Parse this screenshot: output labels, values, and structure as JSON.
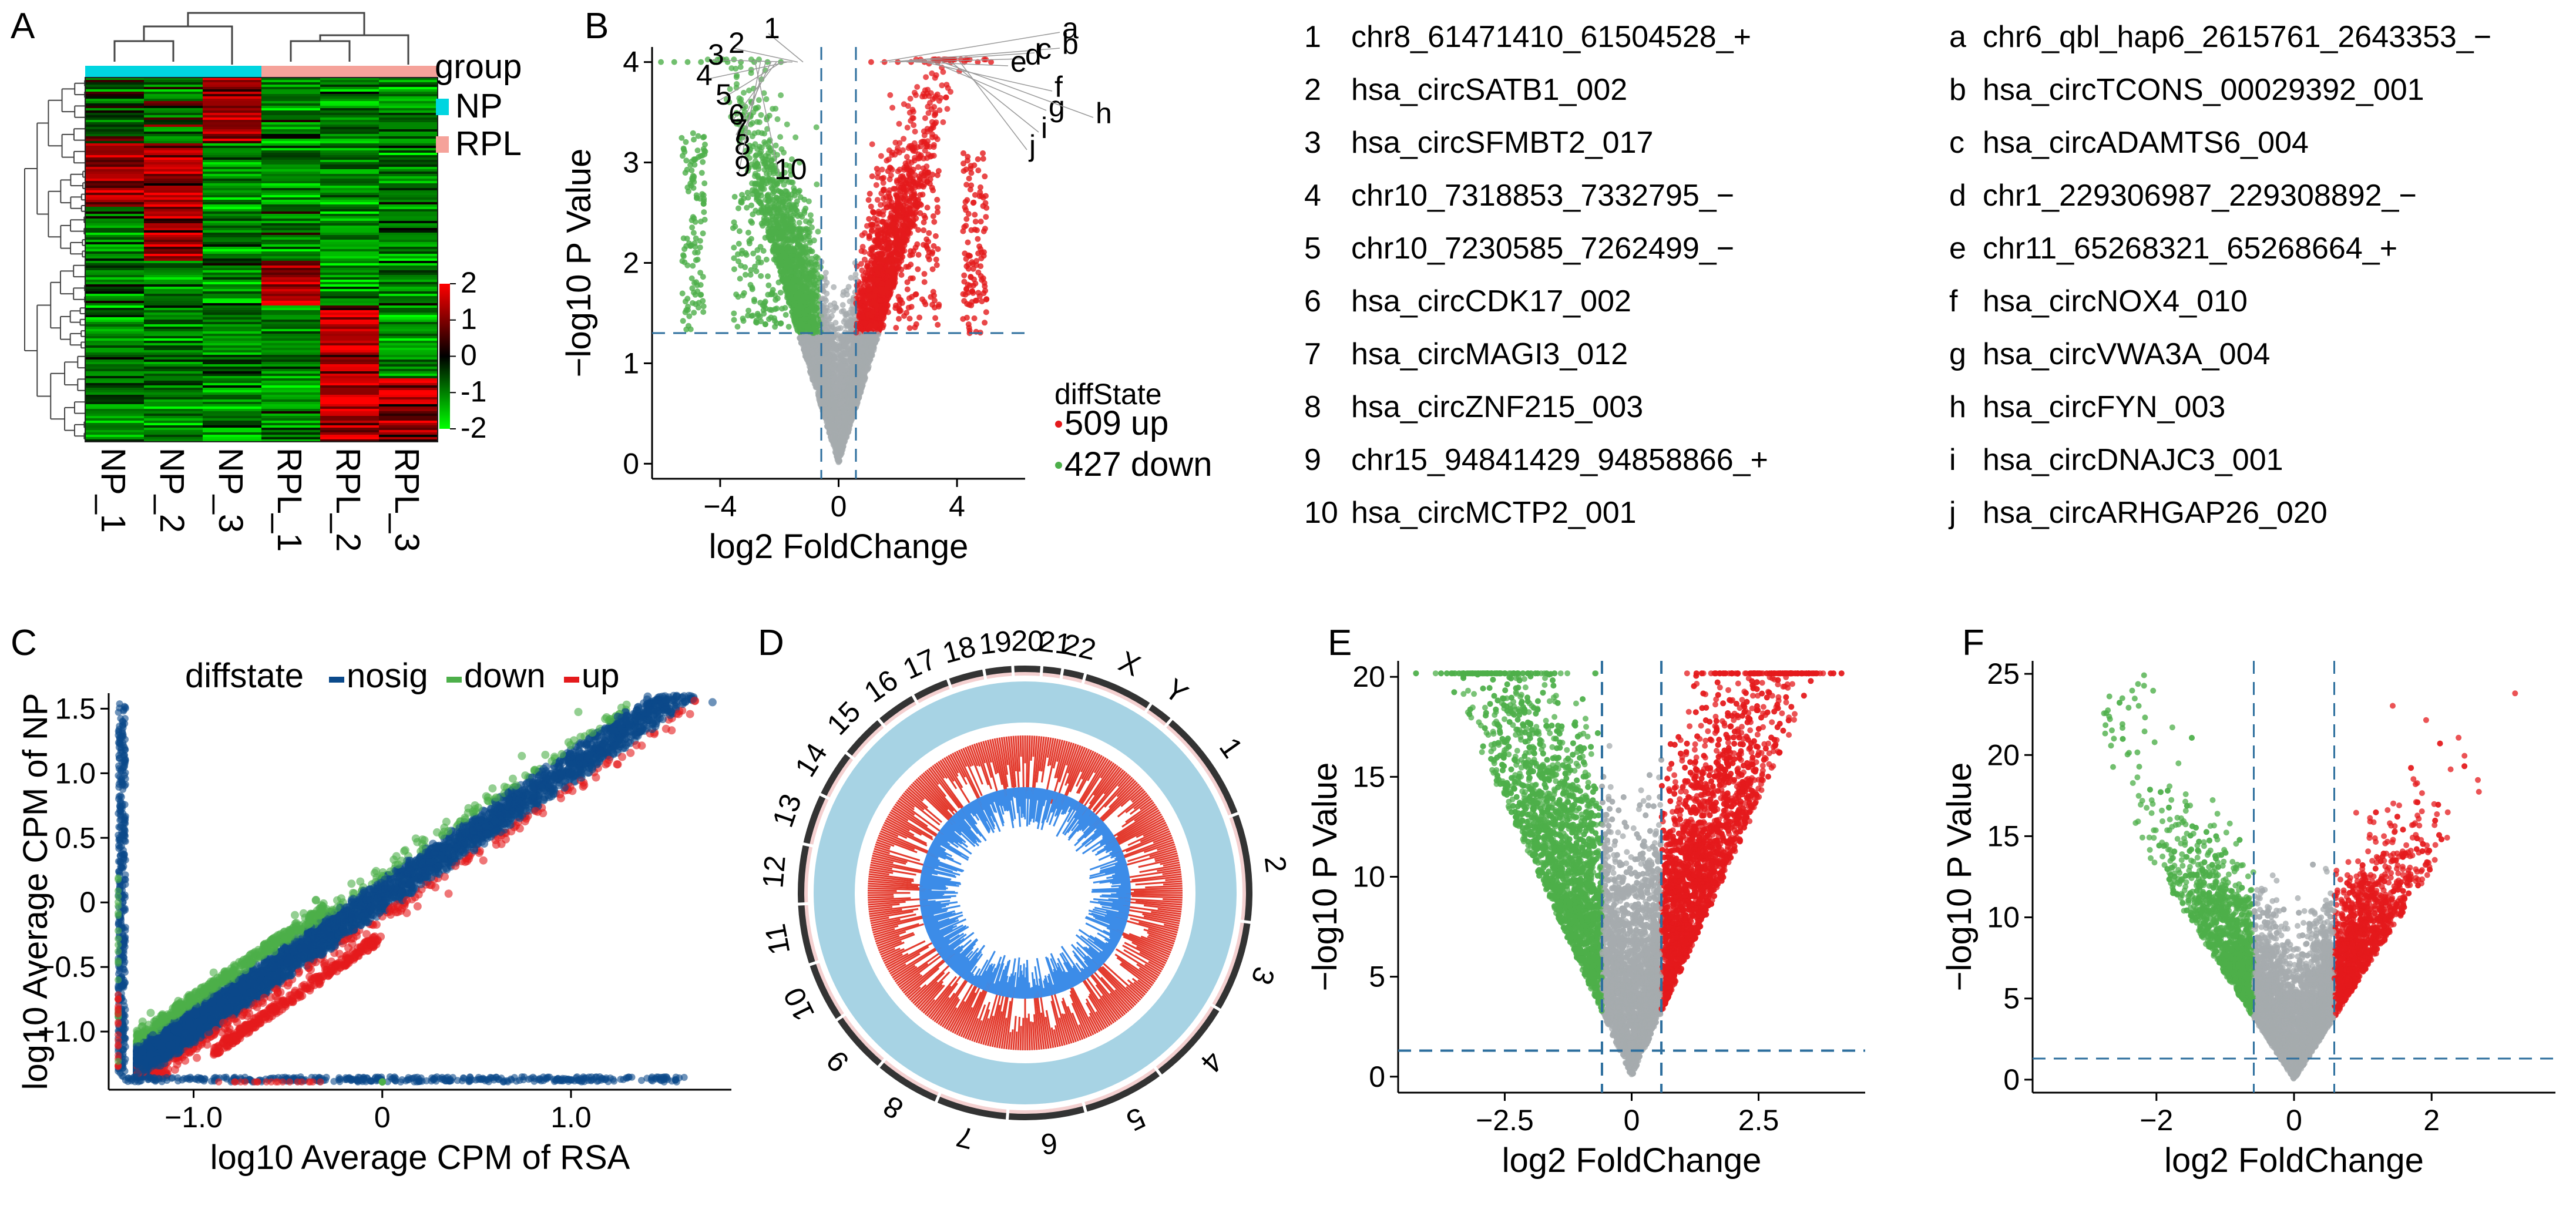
{
  "figure": {
    "panel_letters": [
      "A",
      "B",
      "C",
      "D",
      "E",
      "F"
    ]
  },
  "colors": {
    "up": "#e41a1c",
    "down": "#4daf4a",
    "nosig": "#a6abad",
    "nosig_c": "#0b4a8b",
    "np": "#00d5e0",
    "rpl": "#f5a29a",
    "circos_ring": "#a7d3e4",
    "circos_in": "#3c8ce8",
    "circos_out": "#e33b2e"
  },
  "chart_data": [
    {
      "id": "A",
      "type": "heatmap",
      "title": "",
      "columns": [
        "NP_1",
        "NP_2",
        "NP_3",
        "RPL_1",
        "RPL_2",
        "RPL_3"
      ],
      "legend_title": "group",
      "groups": [
        "NP",
        "RPL"
      ],
      "colorbar": {
        "ticks": [
          "2",
          "1",
          "0",
          "-1",
          "-2"
        ],
        "range": [
          -2,
          2
        ]
      }
    },
    {
      "id": "B",
      "type": "scatter",
      "title": "",
      "xlabel": "log2 FoldChange",
      "ylabel": "−log10 P Value",
      "xlim": [
        -6.3,
        6.3
      ],
      "ylim": [
        -0.15,
        4.15
      ],
      "xticks": [
        -4,
        0,
        4
      ],
      "xtick_labels": [
        "−4",
        "0",
        "4"
      ],
      "yticks": [
        0,
        1,
        2,
        3,
        4
      ],
      "ytick_labels": [
        "0",
        "1",
        "2",
        "3",
        "4"
      ],
      "vlines": [
        -0.585,
        0.585
      ],
      "hline": 1.301,
      "legend_title": "diffState",
      "legend": [
        {
          "name": "up",
          "label": "509 up"
        },
        {
          "name": "down",
          "label": "427 down"
        }
      ],
      "counts": {
        "up": 509,
        "down": 427
      },
      "annot_num": [
        "1",
        "2",
        "3",
        "4",
        "5",
        "6",
        "7",
        "8",
        "9",
        "10"
      ],
      "annot_let": [
        "a",
        "b",
        "c",
        "d",
        "e",
        "f",
        "g",
        "h",
        "i",
        "j"
      ]
    },
    {
      "id": "C",
      "type": "scatter",
      "title": "",
      "xlabel": "log10 Average CPM of RSA",
      "ylabel": "log10 Average CPM of NP",
      "xlim": [
        -1.45,
        1.85
      ],
      "ylim": [
        -1.45,
        1.62
      ],
      "xticks": [
        -1,
        0,
        1
      ],
      "xtick_labels": [
        "−1.0",
        "0",
        "1.0"
      ],
      "yticks": [
        -1,
        -0.5,
        0,
        0.5,
        1,
        1.5
      ],
      "ytick_labels": [
        "−1.0",
        "−0.5",
        "0",
        "0.5",
        "1.0",
        "1.5"
      ],
      "legend_title": "diffstate",
      "legend": [
        "nosig",
        "down",
        "up"
      ]
    },
    {
      "id": "D",
      "type": "circos",
      "title": "",
      "chromosomes": [
        "1",
        "2",
        "3",
        "4",
        "5",
        "6",
        "7",
        "8",
        "9",
        "10",
        "11",
        "12",
        "13",
        "14",
        "15",
        "16",
        "17",
        "18",
        "19",
        "20",
        "21",
        "22",
        "X",
        "Y"
      ]
    },
    {
      "id": "E",
      "type": "scatter",
      "title": "",
      "xlabel": "log2 FoldChange",
      "ylabel": "−log10 P Value",
      "xlim": [
        -4.6,
        4.6
      ],
      "ylim": [
        -0.8,
        20.8
      ],
      "xticks": [
        -2.5,
        0,
        2.5
      ],
      "xtick_labels": [
        "−2.5",
        "0",
        "2.5"
      ],
      "yticks": [
        0,
        5,
        10,
        15,
        20
      ],
      "ytick_labels": [
        "0",
        "5",
        "10",
        "15",
        "20"
      ],
      "vlines": [
        -0.585,
        0.585
      ],
      "hline": 1.301
    },
    {
      "id": "F",
      "type": "scatter",
      "title": "",
      "xlabel": "log2 FoldChange",
      "ylabel": "−log10 P Value",
      "xlim": [
        -3.8,
        3.8
      ],
      "ylim": [
        -0.8,
        25.8
      ],
      "xticks": [
        -2,
        0,
        2
      ],
      "xtick_labels": [
        "−2",
        "0",
        "2"
      ],
      "yticks": [
        0,
        5,
        10,
        15,
        20,
        25
      ],
      "ytick_labels": [
        "0",
        "5",
        "10",
        "15",
        "20",
        "25"
      ],
      "vlines": [
        -0.585,
        0.585
      ],
      "hline": 1.301
    }
  ],
  "circ_list_numbered": [
    {
      "key": "1",
      "name": "chr8_61471410_61504528_+"
    },
    {
      "key": "2",
      "name": "hsa_circSATB1_002"
    },
    {
      "key": "3",
      "name": "hsa_circSFMBT2_017"
    },
    {
      "key": "4",
      "name": "chr10_7318853_7332795_−"
    },
    {
      "key": "5",
      "name": "chr10_7230585_7262499_−"
    },
    {
      "key": "6",
      "name": "hsa_circCDK17_002"
    },
    {
      "key": "7",
      "name": "hsa_circMAGI3_012"
    },
    {
      "key": "8",
      "name": "hsa_circZNF215_003"
    },
    {
      "key": "9",
      "name": "chr15_94841429_94858866_+"
    },
    {
      "key": "10",
      "name": "hsa_circMCTP2_001"
    }
  ],
  "circ_list_lettered": [
    {
      "key": "a",
      "name": "chr6_qbl_hap6_2615761_2643353_−"
    },
    {
      "key": "b",
      "name": "hsa_circTCONS_00029392_001"
    },
    {
      "key": "c",
      "name": "hsa_circADAMTS6_004"
    },
    {
      "key": "d",
      "name": "chr1_229306987_229308892_−"
    },
    {
      "key": "e",
      "name": "chr11_65268321_65268664_+"
    },
    {
      "key": "f",
      "name": "hsa_circNOX4_010"
    },
    {
      "key": "g",
      "name": "hsa_circVWA3A_004"
    },
    {
      "key": "h",
      "name": "hsa_circFYN_003"
    },
    {
      "key": "i",
      "name": "hsa_circDNAJC3_001"
    },
    {
      "key": "j",
      "name": "hsa_circARHGAP26_020"
    }
  ]
}
